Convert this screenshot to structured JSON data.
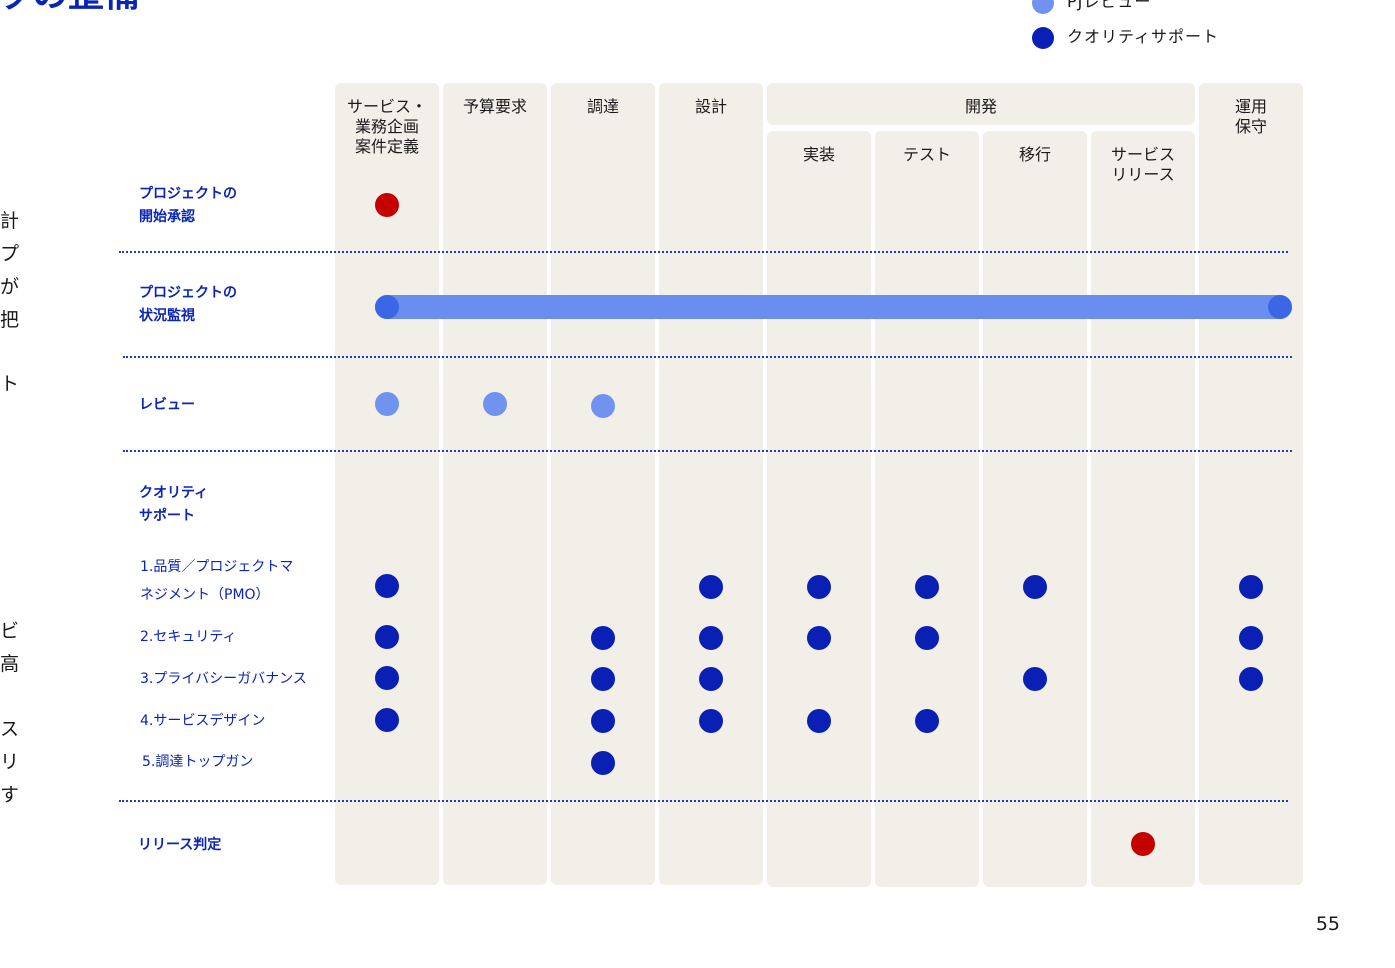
{
  "title_fragment": "ッの整備",
  "legend": [
    {
      "label": "PJレビュー",
      "color": "#6f93ee"
    },
    {
      "label": "クオリティサポート",
      "color": "#0a1fb4"
    }
  ],
  "side_text": [
    "計",
    "プ",
    "が",
    "把",
    "ト",
    "ビ",
    "高",
    "ス",
    "リ",
    "す"
  ],
  "columns": {
    "service": "サービス・\n業務企画\n案件定義",
    "budget": "予算要求",
    "procurement": "調達",
    "design": "設計",
    "dev": "開発",
    "impl": "実装",
    "test": "テスト",
    "migration": "移行",
    "release": "サービス\nリリース",
    "ops": "運用\n保守"
  },
  "rows": {
    "start_approval": "プロジェクトの\n開始承認",
    "monitoring": "プロジェクトの\n状況監視",
    "review": "レビュー",
    "quality_support": "クオリティ\nサポート",
    "release_decision": "リリース判定"
  },
  "quality_items": {
    "q1": "1.品質／プロジェクトマ\nネジメント（PMO）",
    "q2": "2.セキュリティ",
    "q3": "3.プライバシーガバナンス",
    "q4": "4.サービスデザイン",
    "q5": "5.調達トップガン"
  },
  "colors": {
    "accent": "#0a24b8",
    "navy_dot": "#0a1fb4",
    "light_dot": "#6f93ee",
    "red_dot": "#c40000",
    "column_bg": "#f2efe9"
  },
  "page_number": "55"
}
